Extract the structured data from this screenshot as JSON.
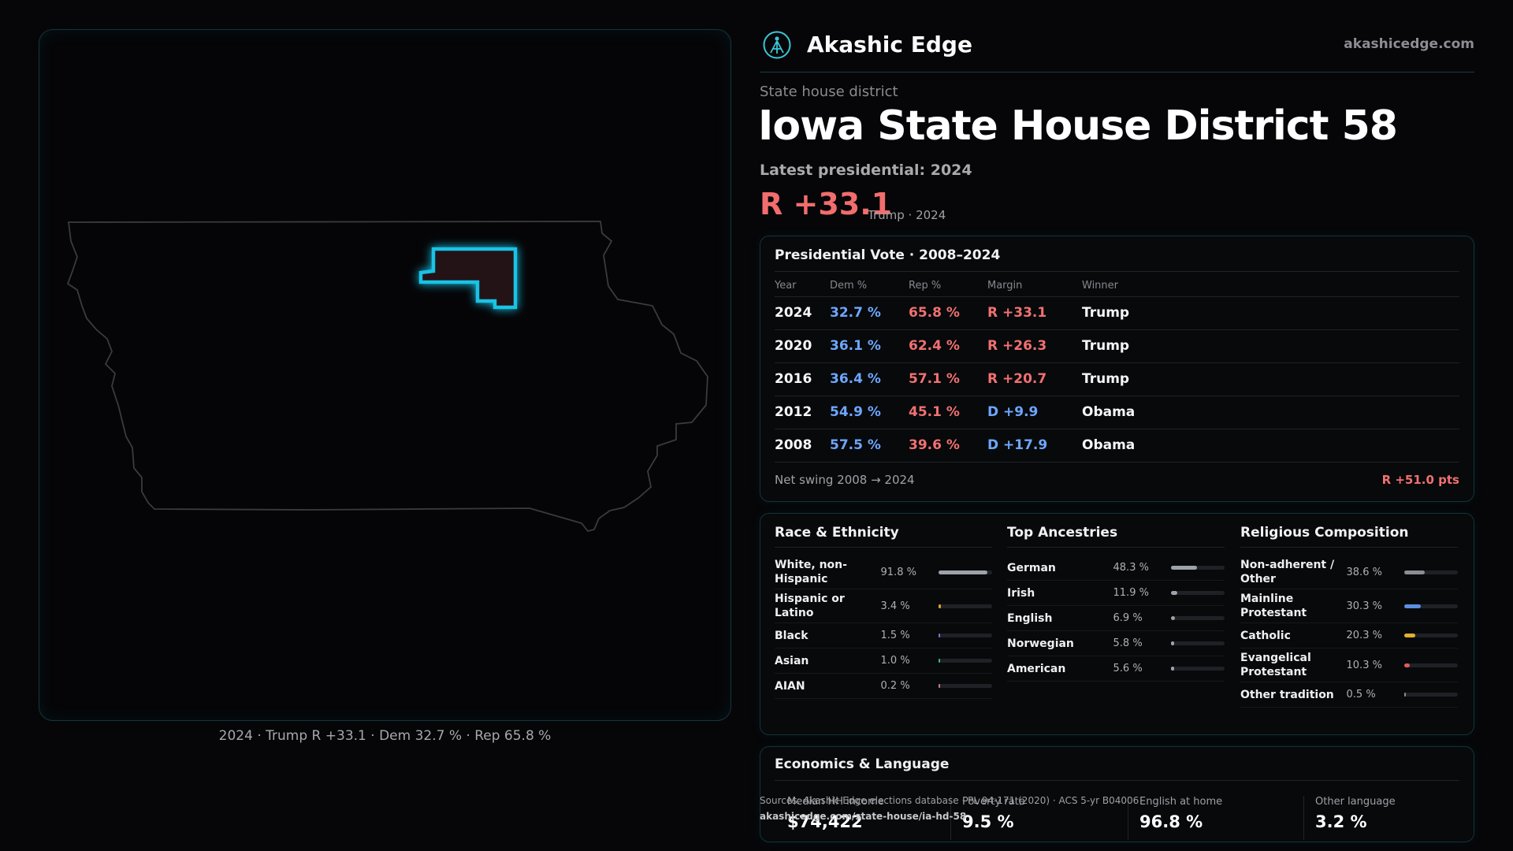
{
  "brand": {
    "name": "Akashic Edge",
    "url": "akashicedge.com",
    "logo_icon": "akashic-edge-logo-icon"
  },
  "header": {
    "kicker": "State house district",
    "title": "Iowa State House District 58",
    "subtitle": "Latest presidential: 2024",
    "margin": "R +33.1",
    "margin_note": "Trump · 2024"
  },
  "map": {
    "caption": "2024 · Trump R +33.1 · Dem 32.7 % · Rep 65.8 %",
    "state_outline_color": "#3a3a3f",
    "district_color": "#19c3e6",
    "district_fill": "#241316"
  },
  "presidential": {
    "title": "Presidential Vote · 2008–2024",
    "columns": [
      "Year",
      "Dem %",
      "Rep %",
      "Margin",
      "Winner"
    ],
    "rows": [
      {
        "year": "2024",
        "dem": "32.7 %",
        "rep": "65.8 %",
        "margin": "R +33.1",
        "party": "R",
        "winner": "Trump"
      },
      {
        "year": "2020",
        "dem": "36.1 %",
        "rep": "62.4 %",
        "margin": "R +26.3",
        "party": "R",
        "winner": "Trump"
      },
      {
        "year": "2016",
        "dem": "36.4 %",
        "rep": "57.1 %",
        "margin": "R +20.7",
        "party": "R",
        "winner": "Trump"
      },
      {
        "year": "2012",
        "dem": "54.9 %",
        "rep": "45.1 %",
        "margin": "D +9.9",
        "party": "D",
        "winner": "Obama"
      },
      {
        "year": "2008",
        "dem": "57.5 %",
        "rep": "39.6 %",
        "margin": "D +17.9",
        "party": "D",
        "winner": "Obama"
      }
    ],
    "swing_label": "Net swing 2008 → 2024",
    "swing_value": "R +51.0 pts"
  },
  "race": {
    "title": "Race & Ethnicity",
    "items": [
      {
        "label": "White, non-Hispanic",
        "value": "91.8 %",
        "pct": 91.8,
        "color": "#9ea3ab"
      },
      {
        "label": "Hispanic or Latino",
        "value": "3.4 %",
        "pct": 3.4,
        "color": "#e0a030"
      },
      {
        "label": "Black",
        "value": "1.5 %",
        "pct": 1.5,
        "color": "#6e7bd6"
      },
      {
        "label": "Asian",
        "value": "1.0 %",
        "pct": 1.0,
        "color": "#3fb59a"
      },
      {
        "label": "AIAN",
        "value": "0.2 %",
        "pct": 0.2,
        "color": "#c07aa0"
      }
    ]
  },
  "ancestry": {
    "title": "Top Ancestries",
    "items": [
      {
        "label": "German",
        "value": "48.3 %",
        "pct": 48.3,
        "color": "#9ea3ab"
      },
      {
        "label": "Irish",
        "value": "11.9 %",
        "pct": 11.9,
        "color": "#9ea3ab"
      },
      {
        "label": "English",
        "value": "6.9 %",
        "pct": 6.9,
        "color": "#9ea3ab"
      },
      {
        "label": "Norwegian",
        "value": "5.8 %",
        "pct": 5.8,
        "color": "#9ea3ab"
      },
      {
        "label": "American",
        "value": "5.6 %",
        "pct": 5.6,
        "color": "#9ea3ab"
      }
    ]
  },
  "religion": {
    "title": "Religious Composition",
    "items": [
      {
        "label": "Non-adherent / Other",
        "value": "38.6 %",
        "pct": 38.6,
        "color": "#8a8d93"
      },
      {
        "label": "Mainline Protestant",
        "value": "30.3 %",
        "pct": 30.3,
        "color": "#5b8fe0"
      },
      {
        "label": "Catholic",
        "value": "20.3 %",
        "pct": 20.3,
        "color": "#e0b030"
      },
      {
        "label": "Evangelical Protestant",
        "value": "10.3 %",
        "pct": 10.3,
        "color": "#e05a5a"
      },
      {
        "label": "Other tradition",
        "value": "0.5 %",
        "pct": 0.5,
        "color": "#8a8d93"
      }
    ]
  },
  "economics": {
    "title": "Economics & Language",
    "stats": [
      {
        "label": "Median HH income",
        "value": "$74,422"
      },
      {
        "label": "Poverty rate",
        "value": "9.5 %"
      },
      {
        "label": "English at home",
        "value": "96.8 %"
      },
      {
        "label": "Other language",
        "value": "3.2 %"
      }
    ]
  },
  "sources": {
    "text": "Sources: Akashic Edge elections database · PL 94-171 (2020) · ACS 5-yr B04006",
    "url": "akashicedge.com/state-house/ia-hd-58"
  }
}
